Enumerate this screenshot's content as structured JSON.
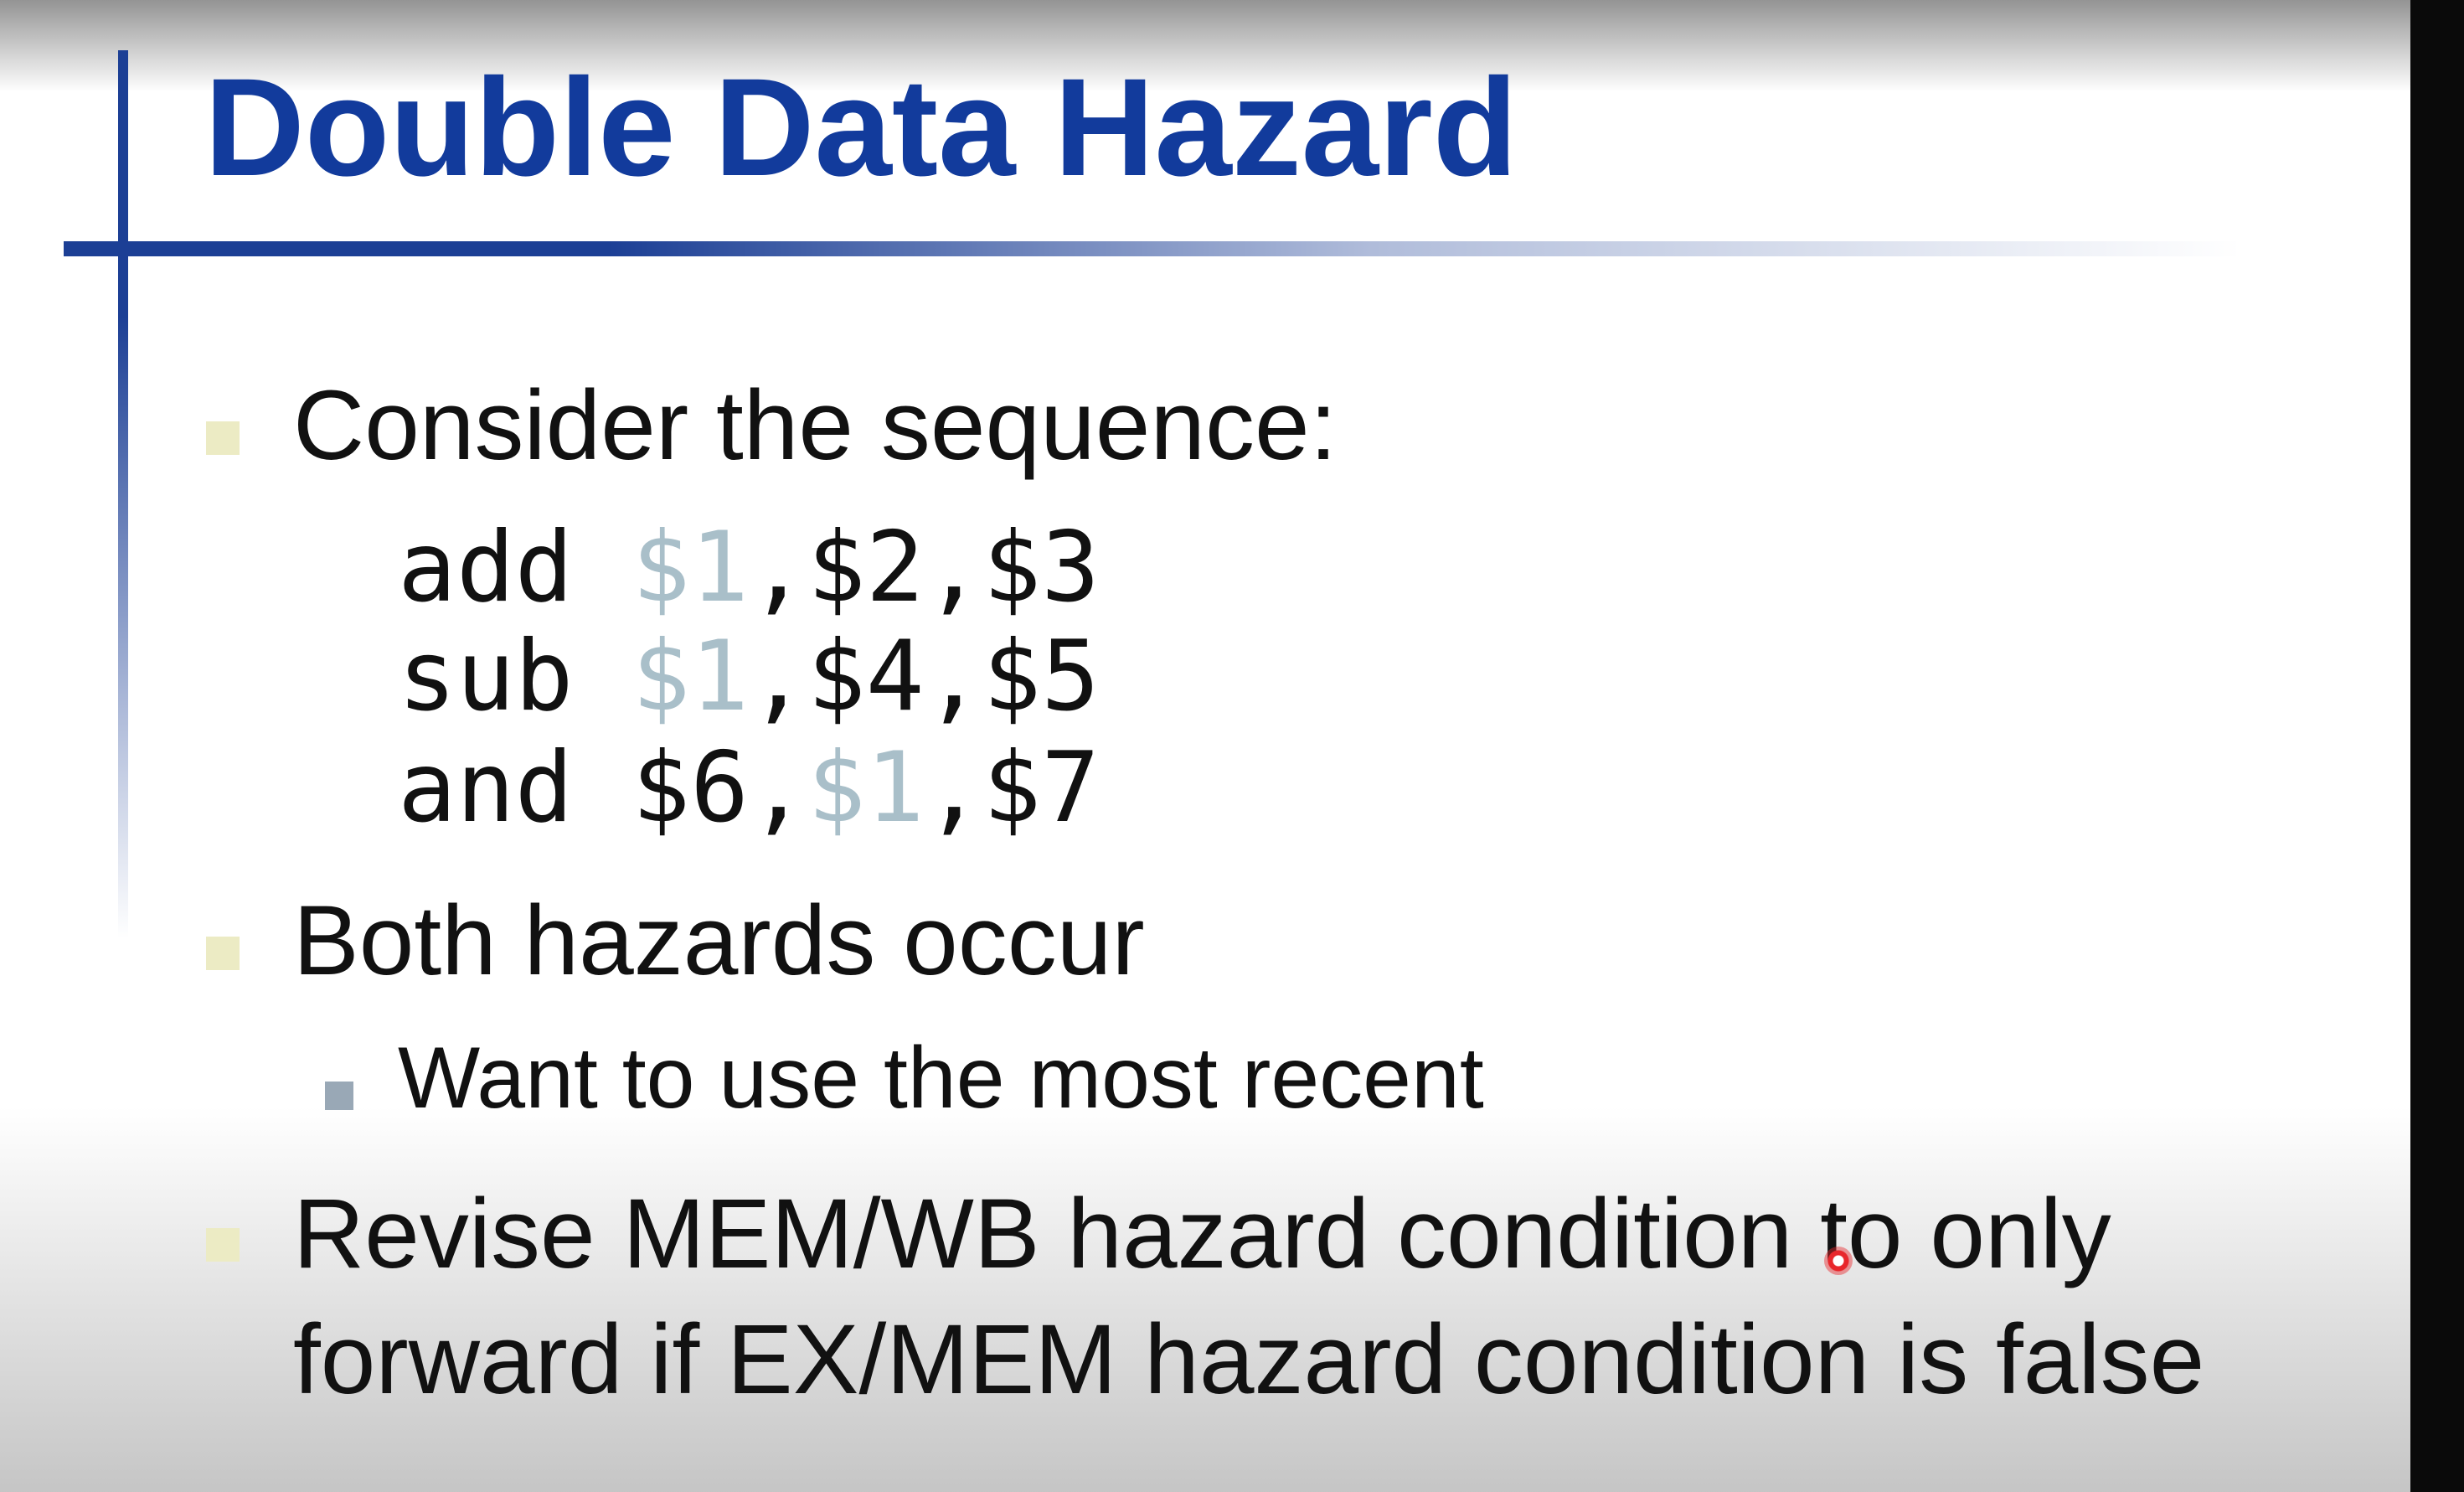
{
  "slide": {
    "title": "Double Data Hazard",
    "bullets": [
      {
        "text": "Consider the sequence:"
      },
      {
        "text": "Both hazards occur"
      },
      {
        "text": "Revise MEM/WB hazard condition to only"
      }
    ],
    "bullet_continuation": "forward if EX/MEM hazard condition is false",
    "sub_bullets": [
      {
        "text": "Want to use the most recent"
      }
    ],
    "code": [
      {
        "op": "add",
        "parts": [
          "$1",
          ",$2,$3"
        ]
      },
      {
        "op": "sub",
        "parts": [
          "$1",
          ",$4,$5"
        ]
      },
      {
        "op": "and",
        "parts": [
          "$6,",
          "$1",
          ",$7"
        ]
      }
    ],
    "colors": {
      "title": "#123b9c",
      "rule": "#1c3f95",
      "highlight_register": "#a9bfc9",
      "bullet": "#ecebc4",
      "sub_bullet": "#99a8b6"
    }
  }
}
